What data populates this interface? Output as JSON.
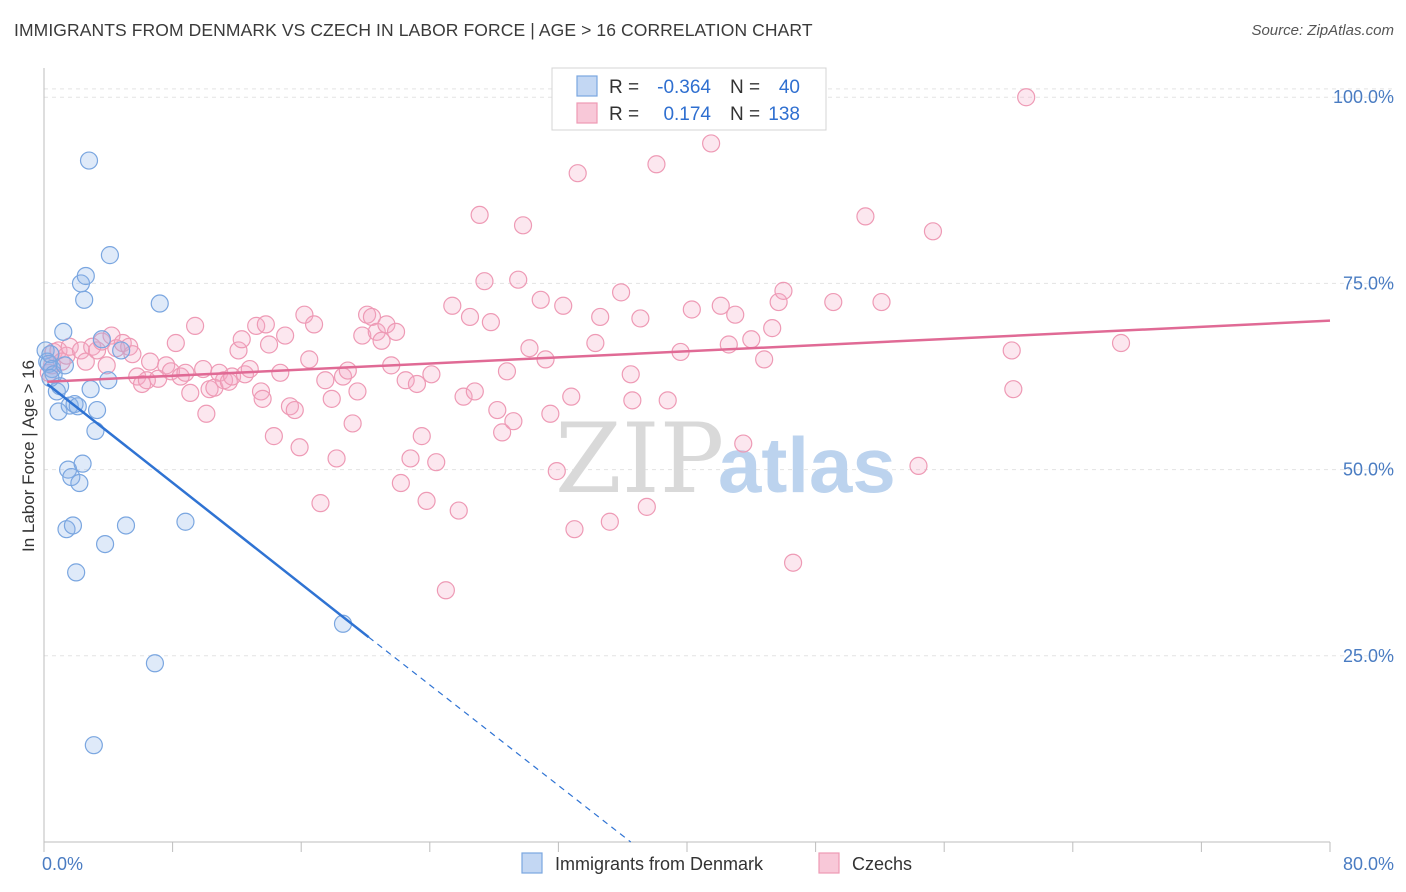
{
  "title": "IMMIGRANTS FROM DENMARK VS CZECH IN LABOR FORCE | AGE > 16 CORRELATION CHART",
  "source": "Source: ZipAtlas.com",
  "watermark": {
    "zip": "ZIP",
    "atlas": "atlas"
  },
  "chart_data": {
    "type": "scatter",
    "xlabel": "",
    "ylabel": "In Labor Force | Age > 16",
    "xlim": [
      0,
      80
    ],
    "ylim": [
      0,
      105
    ],
    "x_tick_labels": [
      "0.0%",
      "80.0%"
    ],
    "y_ticks": [
      25,
      50,
      75,
      100
    ],
    "y_tick_labels": [
      "25.0%",
      "50.0%",
      "75.0%",
      "100.0%"
    ],
    "grid": true,
    "colors": {
      "blue": "#7aa6e0",
      "blue_line": "#2f73d3",
      "pink": "#ee9ab5",
      "pink_line": "#e06a95"
    },
    "legend": {
      "rows": [
        {
          "r_label": "R =",
          "r_value": "-0.364",
          "n_label": "N =",
          "n_value": "40"
        },
        {
          "r_label": "R =",
          "r_value": "0.174",
          "n_label": "N =",
          "n_value": "138"
        }
      ]
    },
    "series": [
      {
        "name": "Immigrants from Denmark",
        "trend": {
          "x": [
            0.2,
            20.2
          ],
          "y": [
            61.5,
            27.5
          ],
          "dash_to": [
            36.5,
            0
          ]
        },
        "points": [
          [
            0.1,
            66.0
          ],
          [
            0.2,
            64.5
          ],
          [
            0.3,
            64.2
          ],
          [
            0.4,
            65.5
          ],
          [
            0.5,
            63.5
          ],
          [
            0.6,
            62.8
          ],
          [
            0.8,
            60.5
          ],
          [
            0.9,
            57.8
          ],
          [
            1.0,
            61.2
          ],
          [
            1.2,
            68.5
          ],
          [
            1.3,
            64.0
          ],
          [
            1.4,
            42.0
          ],
          [
            1.5,
            50.0
          ],
          [
            1.6,
            58.6
          ],
          [
            1.7,
            49.0
          ],
          [
            1.8,
            42.5
          ],
          [
            1.9,
            58.8
          ],
          [
            2.0,
            36.2
          ],
          [
            2.1,
            58.5
          ],
          [
            2.2,
            48.2
          ],
          [
            2.3,
            75.0
          ],
          [
            2.4,
            50.8
          ],
          [
            2.5,
            72.8
          ],
          [
            2.6,
            76.0
          ],
          [
            2.8,
            91.5
          ],
          [
            2.9,
            60.8
          ],
          [
            3.1,
            13.0
          ],
          [
            3.2,
            55.2
          ],
          [
            3.3,
            58.0
          ],
          [
            3.6,
            67.5
          ],
          [
            3.8,
            40.0
          ],
          [
            4.0,
            62.0
          ],
          [
            4.1,
            78.8
          ],
          [
            4.8,
            66.0
          ],
          [
            5.1,
            42.5
          ],
          [
            6.9,
            24.0
          ],
          [
            7.2,
            72.3
          ],
          [
            8.8,
            43.0
          ],
          [
            18.6,
            29.3
          ],
          [
            0.4,
            62.3
          ]
        ]
      },
      {
        "name": "Czechs",
        "trend": {
          "x": [
            0.2,
            80.0
          ],
          "y": [
            61.8,
            70.0
          ]
        },
        "points": [
          [
            0.3,
            63.0
          ],
          [
            0.5,
            64.0
          ],
          [
            0.6,
            65.8
          ],
          [
            0.9,
            66.0
          ],
          [
            1.1,
            64.5
          ],
          [
            1.4,
            65.3
          ],
          [
            1.6,
            66.5
          ],
          [
            2.3,
            66.0
          ],
          [
            2.6,
            64.5
          ],
          [
            3.0,
            66.5
          ],
          [
            3.3,
            66.0
          ],
          [
            3.6,
            67.2
          ],
          [
            3.9,
            64.0
          ],
          [
            4.2,
            68.0
          ],
          [
            4.5,
            66.3
          ],
          [
            4.9,
            67.0
          ],
          [
            5.3,
            66.5
          ],
          [
            5.5,
            65.5
          ],
          [
            5.8,
            62.5
          ],
          [
            6.1,
            61.5
          ],
          [
            6.4,
            62.0
          ],
          [
            6.6,
            64.5
          ],
          [
            7.1,
            62.2
          ],
          [
            7.6,
            64.0
          ],
          [
            7.9,
            63.2
          ],
          [
            8.2,
            67.0
          ],
          [
            8.5,
            62.5
          ],
          [
            8.8,
            63.0
          ],
          [
            9.1,
            60.3
          ],
          [
            9.4,
            69.3
          ],
          [
            9.9,
            63.5
          ],
          [
            10.1,
            57.5
          ],
          [
            10.3,
            60.8
          ],
          [
            10.6,
            61.0
          ],
          [
            10.9,
            63.0
          ],
          [
            11.2,
            62.0
          ],
          [
            11.5,
            61.8
          ],
          [
            11.7,
            62.5
          ],
          [
            12.1,
            66.0
          ],
          [
            12.3,
            67.5
          ],
          [
            12.5,
            62.8
          ],
          [
            12.8,
            63.5
          ],
          [
            13.2,
            69.3
          ],
          [
            13.5,
            60.5
          ],
          [
            13.8,
            69.5
          ],
          [
            14.0,
            66.8
          ],
          [
            14.3,
            54.5
          ],
          [
            14.7,
            63.0
          ],
          [
            15.0,
            68.0
          ],
          [
            15.3,
            58.5
          ],
          [
            15.6,
            58.0
          ],
          [
            15.9,
            53.0
          ],
          [
            16.2,
            70.8
          ],
          [
            16.5,
            64.8
          ],
          [
            16.8,
            69.5
          ],
          [
            17.2,
            45.5
          ],
          [
            17.5,
            62.0
          ],
          [
            17.9,
            59.5
          ],
          [
            18.2,
            51.5
          ],
          [
            18.6,
            62.5
          ],
          [
            18.9,
            63.3
          ],
          [
            19.2,
            56.2
          ],
          [
            19.5,
            60.5
          ],
          [
            19.8,
            68.0
          ],
          [
            20.1,
            70.8
          ],
          [
            20.4,
            70.5
          ],
          [
            20.7,
            68.5
          ],
          [
            21.0,
            67.3
          ],
          [
            21.3,
            69.5
          ],
          [
            21.6,
            64.0
          ],
          [
            21.9,
            68.5
          ],
          [
            22.2,
            48.2
          ],
          [
            22.5,
            62.0
          ],
          [
            22.8,
            51.5
          ],
          [
            23.2,
            61.5
          ],
          [
            23.5,
            54.5
          ],
          [
            23.8,
            45.8
          ],
          [
            24.1,
            62.8
          ],
          [
            24.4,
            51.0
          ],
          [
            25.0,
            33.8
          ],
          [
            25.4,
            72.0
          ],
          [
            25.8,
            44.5
          ],
          [
            26.1,
            59.8
          ],
          [
            26.5,
            70.5
          ],
          [
            26.8,
            60.5
          ],
          [
            27.1,
            84.2
          ],
          [
            27.4,
            75.3
          ],
          [
            27.8,
            69.8
          ],
          [
            28.2,
            58.0
          ],
          [
            28.5,
            55.0
          ],
          [
            28.8,
            63.2
          ],
          [
            29.2,
            56.5
          ],
          [
            29.5,
            75.5
          ],
          [
            29.8,
            82.8
          ],
          [
            30.2,
            66.3
          ],
          [
            30.9,
            72.8
          ],
          [
            31.2,
            64.8
          ],
          [
            31.5,
            57.5
          ],
          [
            31.9,
            49.8
          ],
          [
            32.3,
            72.0
          ],
          [
            32.8,
            59.8
          ],
          [
            33.0,
            42.0
          ],
          [
            33.2,
            89.8
          ],
          [
            34.3,
            67.0
          ],
          [
            34.6,
            70.5
          ],
          [
            35.2,
            43.0
          ],
          [
            35.9,
            73.8
          ],
          [
            36.5,
            62.8
          ],
          [
            36.6,
            59.3
          ],
          [
            37.1,
            70.3
          ],
          [
            37.5,
            45.0
          ],
          [
            38.1,
            91.0
          ],
          [
            38.8,
            59.3
          ],
          [
            39.6,
            65.8
          ],
          [
            40.3,
            71.5
          ],
          [
            41.5,
            93.8
          ],
          [
            42.1,
            72.0
          ],
          [
            42.6,
            66.8
          ],
          [
            43.0,
            70.8
          ],
          [
            43.5,
            53.5
          ],
          [
            44.0,
            67.5
          ],
          [
            44.8,
            64.8
          ],
          [
            45.3,
            69.0
          ],
          [
            45.7,
            72.5
          ],
          [
            46.0,
            74.0
          ],
          [
            46.6,
            37.5
          ],
          [
            49.1,
            72.5
          ],
          [
            51.1,
            84.0
          ],
          [
            52.1,
            72.5
          ],
          [
            54.4,
            50.5
          ],
          [
            55.3,
            82.0
          ],
          [
            60.2,
            66.0
          ],
          [
            60.3,
            60.8
          ],
          [
            61.1,
            100.0
          ],
          [
            67.0,
            67.0
          ],
          [
            13.6,
            59.5
          ]
        ]
      }
    ]
  }
}
